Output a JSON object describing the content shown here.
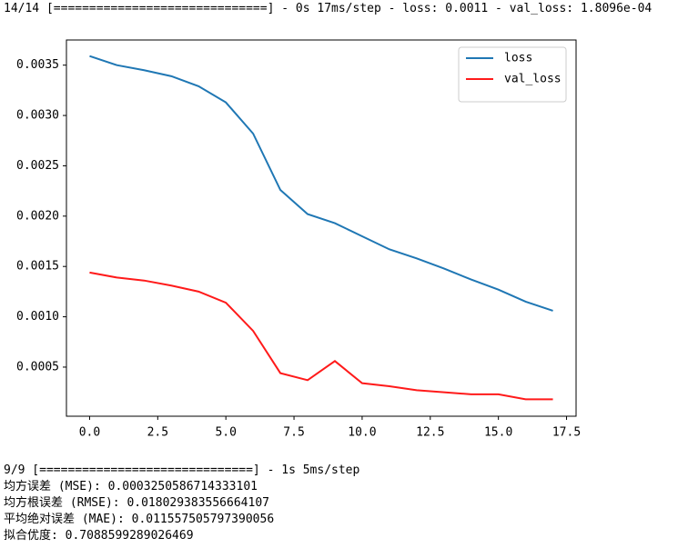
{
  "log_top": "14/14 [==============================] - 0s 17ms/step - loss: 0.0011 - val_loss: 1.8096e-04",
  "chart_data": {
    "type": "line",
    "x": [
      0,
      1,
      2,
      3,
      4,
      5,
      6,
      7,
      8,
      9,
      10,
      11,
      12,
      13,
      14,
      15,
      16,
      17
    ],
    "series": [
      {
        "name": "loss",
        "color": "#1f77b4",
        "values": [
          0.00359,
          0.0035,
          0.00345,
          0.00339,
          0.00329,
          0.00313,
          0.00282,
          0.00226,
          0.00202,
          0.00193,
          0.0018,
          0.00167,
          0.00158,
          0.00148,
          0.00137,
          0.00127,
          0.00115,
          0.00106
        ]
      },
      {
        "name": "val_loss",
        "color": "#ff1a1a",
        "values": [
          0.00144,
          0.00139,
          0.00136,
          0.00131,
          0.00125,
          0.00114,
          0.00086,
          0.00044,
          0.00037,
          0.00056,
          0.00034,
          0.00031,
          0.00027,
          0.00025,
          0.00023,
          0.00023,
          0.00018,
          0.00018
        ]
      }
    ],
    "xlim": [
      -0.85,
      17.85
    ],
    "xticks": [
      {
        "value": 0,
        "label": "0.0"
      },
      2.5,
      {
        "value": 5,
        "label": "5.0"
      },
      7.5,
      {
        "value": 10,
        "label": "10.0"
      },
      12.5,
      {
        "value": 15,
        "label": "15.0"
      },
      17.5
    ],
    "ylim": [
      1.2e-05,
      0.00375
    ],
    "yticks": [
      0.0005,
      {
        "value": 0.001,
        "label": "0.0010"
      },
      0.0015,
      {
        "value": 0.002,
        "label": "0.0020"
      },
      0.0025,
      {
        "value": 0.003,
        "label": "0.0030"
      },
      0.0035
    ],
    "grid": false,
    "legend": "upper right"
  },
  "log_bottom": [
    "9/9 [==============================] - 1s 5ms/step",
    "均方误差 (MSE): 0.0003250586714333101",
    "均方根误差 (RMSE): 0.018029383556664107",
    "平均绝对误差 (MAE): 0.011557505797390056",
    "拟合优度: 0.7088599289026469"
  ]
}
